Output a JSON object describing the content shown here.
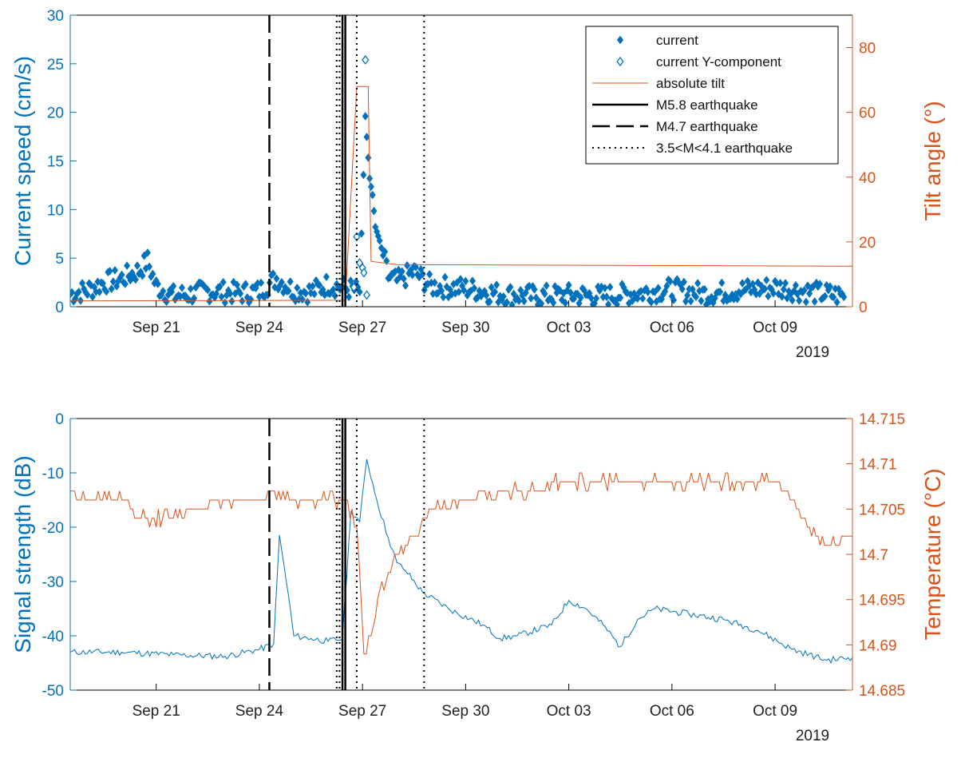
{
  "colors": {
    "blue": "#0072bd",
    "orange": "#d95319",
    "black": "#000000"
  },
  "chart_data": [
    {
      "type": "scatter",
      "ylabel": "Current speed (cm/s)",
      "ylabel_right": "Tilt angle (°)",
      "xlim": [
        "2019-09-18T12:00",
        "2019-10-11T06:00"
      ],
      "ylim": [
        0,
        30
      ],
      "ylim_right": [
        0,
        90
      ],
      "yticks": [
        "0",
        "5",
        "10",
        "15",
        "20",
        "25",
        "30"
      ],
      "yticks_right": [
        "0",
        "20",
        "40",
        "60",
        "80"
      ],
      "xticks": [
        "Sep 21",
        "Sep 24",
        "Sep 27",
        "Sep 30",
        "Oct 03",
        "Oct 06",
        "Oct 09"
      ],
      "year_label": "2019",
      "legend_position": "top-right",
      "legend": [
        {
          "label": "current",
          "style": "filled-diamond"
        },
        {
          "label": "current Y-component",
          "style": "open-diamond"
        },
        {
          "label": "absolute tilt",
          "style": "orange-line"
        },
        {
          "label": "M5.8 earthquake",
          "style": "solid"
        },
        {
          "label": "M4.7 earthquake",
          "style": "dashed"
        },
        {
          "label": "3.5<M<4.1 earthquake",
          "style": "dotted"
        }
      ],
      "series": [
        {
          "name": "current",
          "axis": "left",
          "x_days_pattern": "15-minute samples from Sep 18 12:00",
          "points": [
            [
              "2019-09-18T12:00",
              1.2
            ],
            [
              "2019-09-19T00:00",
              1.6
            ],
            [
              "2019-09-19T12:00",
              2.4
            ],
            [
              "2019-09-20T00:00",
              2.8
            ],
            [
              "2019-09-20T12:00",
              3.6
            ],
            [
              "2019-09-20T18:00",
              4.6
            ],
            [
              "2019-09-21T00:00",
              2.0
            ],
            [
              "2019-09-21T12:00",
              1.0
            ],
            [
              "2019-09-22T00:00",
              1.2
            ],
            [
              "2019-09-22T12:00",
              1.5
            ],
            [
              "2019-09-23T00:00",
              1.4
            ],
            [
              "2019-09-23T12:00",
              1.3
            ],
            [
              "2019-09-24T00:00",
              1.5
            ],
            [
              "2019-09-24T12:00",
              2.8
            ],
            [
              "2019-09-25T00:00",
              1.6
            ],
            [
              "2019-09-25T12:00",
              1.4
            ],
            [
              "2019-09-26T00:00",
              2.2
            ],
            [
              "2019-09-26T12:00",
              1.8
            ],
            [
              "2019-09-26T22:00",
              1.5
            ],
            [
              "2019-09-27T02:00",
              19.6
            ],
            [
              "2019-09-27T05:00",
              13.2
            ],
            [
              "2019-09-27T07:00",
              11.5
            ],
            [
              "2019-09-27T09:00",
              8.2
            ],
            [
              "2019-09-27T12:00",
              6.8
            ],
            [
              "2019-09-27T18:00",
              3.0
            ],
            [
              "2019-09-28T00:00",
              2.5
            ],
            [
              "2019-09-28T12:00",
              3.5
            ],
            [
              "2019-09-29T00:00",
              2.0
            ],
            [
              "2019-09-30T00:00",
              1.8
            ],
            [
              "2019-10-01T00:00",
              1.2
            ],
            [
              "2019-10-02T00:00",
              1.0
            ],
            [
              "2019-10-03T00:00",
              1.1
            ],
            [
              "2019-10-04T00:00",
              1.0
            ],
            [
              "2019-10-05T00:00",
              1.3
            ],
            [
              "2019-10-06T00:00",
              1.7
            ],
            [
              "2019-10-07T00:00",
              1.2
            ],
            [
              "2019-10-08T00:00",
              1.6
            ],
            [
              "2019-10-09T00:00",
              1.9
            ],
            [
              "2019-10-10T00:00",
              1.4
            ],
            [
              "2019-10-11T00:00",
              1.0
            ]
          ]
        },
        {
          "name": "current Y-component",
          "axis": "left",
          "points": [
            [
              "2019-09-26T18:00",
              2.0
            ],
            [
              "2019-09-26T20:00",
              7.2
            ],
            [
              "2019-09-26T22:00",
              4.5
            ],
            [
              "2019-09-27T00:00",
              4.0
            ],
            [
              "2019-09-27T01:00",
              3.5
            ],
            [
              "2019-09-27T02:00",
              25.4
            ],
            [
              "2019-09-27T03:00",
              1.2
            ]
          ]
        },
        {
          "name": "absolute tilt",
          "axis": "right",
          "points": [
            [
              "2019-09-18T12:00",
              1.8
            ],
            [
              "2019-09-26T12:00",
              2.0
            ],
            [
              "2019-09-26T20:00",
              68.0
            ],
            [
              "2019-09-27T04:00",
              68.0
            ],
            [
              "2019-09-27T06:00",
              14.0
            ],
            [
              "2019-09-28T00:00",
              13.0
            ],
            [
              "2019-10-11T06:00",
              12.5
            ]
          ]
        }
      ],
      "events": [
        {
          "label": "M5.8 earthquake",
          "style": "solid",
          "x": "2019-09-26T10:00"
        },
        {
          "label": "M5.8 earthquake",
          "style": "solid",
          "x": "2019-09-26T12:00"
        },
        {
          "label": "M4.7 earthquake",
          "style": "dashed",
          "x": "2019-09-24T07:00"
        },
        {
          "label": "3.5<M<4.1 earthquake",
          "style": "dotted",
          "x": "2019-09-26T06:00"
        },
        {
          "label": "3.5<M<4.1 earthquake",
          "style": "dotted",
          "x": "2019-09-26T08:00"
        },
        {
          "label": "3.5<M<4.1 earthquake",
          "style": "dotted",
          "x": "2019-09-26T20:00"
        },
        {
          "label": "3.5<M<4.1 earthquake",
          "style": "dotted",
          "x": "2019-09-28T19:00"
        }
      ]
    },
    {
      "type": "line",
      "ylabel": "Signal strength (dB)",
      "ylabel_right": "Temperature (°C)",
      "xlim": [
        "2019-09-18T12:00",
        "2019-10-11T06:00"
      ],
      "ylim": [
        -50,
        0
      ],
      "ylim_right": [
        14.685,
        14.715
      ],
      "yticks": [
        "-50",
        "-40",
        "-30",
        "-20",
        "-10",
        "0"
      ],
      "yticks_right": [
        "14.685",
        "14.69",
        "14.695",
        "14.7",
        "14.705",
        "14.71",
        "14.715"
      ],
      "xticks": [
        "Sep 21",
        "Sep 24",
        "Sep 27",
        "Sep 30",
        "Oct 03",
        "Oct 06",
        "Oct 09"
      ],
      "year_label": "2019",
      "series": [
        {
          "name": "signal strength",
          "axis": "left",
          "points": [
            [
              "2019-09-18T12:00",
              -43.0
            ],
            [
              "2019-09-20T00:00",
              -43.0
            ],
            [
              "2019-09-21T12:00",
              -43.5
            ],
            [
              "2019-09-23T00:00",
              -43.8
            ],
            [
              "2019-09-24T00:00",
              -42.5
            ],
            [
              "2019-09-24T10:00",
              -41.5
            ],
            [
              "2019-09-24T14:00",
              -21.5
            ],
            [
              "2019-09-24T20:00",
              -32.0
            ],
            [
              "2019-09-25T00:00",
              -40.0
            ],
            [
              "2019-09-25T12:00",
              -40.5
            ],
            [
              "2019-09-26T00:00",
              -41.0
            ],
            [
              "2019-09-26T10:00",
              -40.5
            ],
            [
              "2019-09-26T16:00",
              -17.0
            ],
            [
              "2019-09-26T22:00",
              -19.0
            ],
            [
              "2019-09-27T03:00",
              -7.5
            ],
            [
              "2019-09-27T10:00",
              -15.0
            ],
            [
              "2019-09-27T18:00",
              -22.0
            ],
            [
              "2019-09-28T00:00",
              -26.5
            ],
            [
              "2019-09-28T06:00",
              -28.0
            ],
            [
              "2019-09-28T18:00",
              -32.0
            ],
            [
              "2019-09-29T12:00",
              -35.0
            ],
            [
              "2019-09-30T12:00",
              -38.0
            ],
            [
              "2019-10-01T00:00",
              -40.5
            ],
            [
              "2019-10-01T12:00",
              -40.0
            ],
            [
              "2019-10-02T12:00",
              -38.0
            ],
            [
              "2019-10-03T00:00",
              -33.5
            ],
            [
              "2019-10-03T12:00",
              -35.0
            ],
            [
              "2019-10-04T00:00",
              -38.0
            ],
            [
              "2019-10-04T12:00",
              -42.0
            ],
            [
              "2019-10-05T00:00",
              -37.0
            ],
            [
              "2019-10-05T12:00",
              -35.0
            ],
            [
              "2019-10-06T12:00",
              -36.0
            ],
            [
              "2019-10-07T12:00",
              -37.0
            ],
            [
              "2019-10-08T12:00",
              -39.0
            ],
            [
              "2019-10-09T12:00",
              -42.5
            ],
            [
              "2019-10-10T12:00",
              -44.5
            ],
            [
              "2019-10-11T06:00",
              -44.0
            ]
          ]
        },
        {
          "name": "temperature",
          "axis": "right",
          "points": [
            [
              "2019-09-18T12:00",
              14.707
            ],
            [
              "2019-09-19T00:00",
              14.706
            ],
            [
              "2019-09-20T00:00",
              14.706
            ],
            [
              "2019-09-20T12:00",
              14.704
            ],
            [
              "2019-09-21T12:00",
              14.704
            ],
            [
              "2019-09-22T00:00",
              14.705
            ],
            [
              "2019-09-23T00:00",
              14.706
            ],
            [
              "2019-09-24T00:00",
              14.706
            ],
            [
              "2019-09-24T06:00",
              14.707
            ],
            [
              "2019-09-25T00:00",
              14.706
            ],
            [
              "2019-09-26T00:00",
              14.706
            ],
            [
              "2019-09-26T12:00",
              14.706
            ],
            [
              "2019-09-26T20:00",
              14.703
            ],
            [
              "2019-09-27T01:00",
              14.689
            ],
            [
              "2019-09-27T06:00",
              14.691
            ],
            [
              "2019-09-27T12:00",
              14.696
            ],
            [
              "2019-09-28T00:00",
              14.7
            ],
            [
              "2019-09-28T12:00",
              14.702
            ],
            [
              "2019-09-29T00:00",
              14.705
            ],
            [
              "2019-09-30T00:00",
              14.706
            ],
            [
              "2019-10-01T00:00",
              14.707
            ],
            [
              "2019-10-02T00:00",
              14.707
            ],
            [
              "2019-10-02T12:00",
              14.708
            ],
            [
              "2019-10-05T00:00",
              14.708
            ],
            [
              "2019-10-08T00:00",
              14.708
            ],
            [
              "2019-10-09T00:00",
              14.708
            ],
            [
              "2019-10-09T12:00",
              14.706
            ],
            [
              "2019-10-10T00:00",
              14.703
            ],
            [
              "2019-10-10T12:00",
              14.701
            ],
            [
              "2019-10-11T06:00",
              14.702
            ]
          ]
        }
      ],
      "events": [
        {
          "label": "M5.8 earthquake",
          "style": "solid",
          "x": "2019-09-26T10:00"
        },
        {
          "label": "M5.8 earthquake",
          "style": "solid",
          "x": "2019-09-26T12:00"
        },
        {
          "label": "M4.7 earthquake",
          "style": "dashed",
          "x": "2019-09-24T07:00"
        },
        {
          "label": "3.5<M<4.1 earthquake",
          "style": "dotted",
          "x": "2019-09-26T06:00"
        },
        {
          "label": "3.5<M<4.1 earthquake",
          "style": "dotted",
          "x": "2019-09-26T08:00"
        },
        {
          "label": "3.5<M<4.1 earthquake",
          "style": "dotted",
          "x": "2019-09-26T20:00"
        },
        {
          "label": "3.5<M<4.1 earthquake",
          "style": "dotted",
          "x": "2019-09-28T19:00"
        }
      ]
    }
  ]
}
